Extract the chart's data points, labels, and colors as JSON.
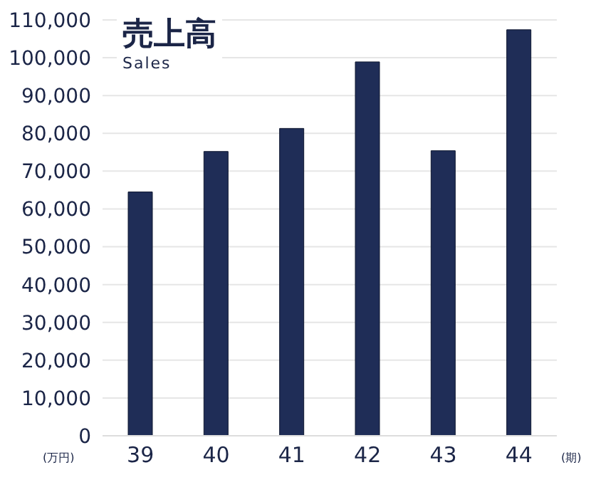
{
  "chart_data": {
    "type": "bar",
    "title": "売上高",
    "subtitle": "Sales",
    "xlabel": "(期)",
    "ylabel": "(万円)",
    "categories": [
      "39",
      "40",
      "41",
      "42",
      "43",
      "44"
    ],
    "values": [
      64500,
      75200,
      81300,
      98900,
      75400,
      107400
    ],
    "color": "#1f2d57",
    "ylim": [
      0,
      110000
    ],
    "yticks": [
      0,
      {
        "value": 10000,
        "label": "10,000"
      },
      {
        "value": 20000,
        "label": "20,000"
      },
      {
        "value": 30000,
        "label": "30,000"
      },
      {
        "value": 40000,
        "label": "40,000"
      },
      {
        "value": 50000,
        "label": "50,000"
      },
      {
        "value": 60000,
        "label": "60,000"
      },
      {
        "value": 70000,
        "label": "70,000"
      },
      {
        "value": 80000,
        "label": "80,000"
      },
      {
        "value": 90000,
        "label": "90,000"
      },
      {
        "value": 100000,
        "label": "100,000"
      },
      {
        "value": 110000,
        "label": "110,000"
      }
    ],
    "grid": "y"
  }
}
